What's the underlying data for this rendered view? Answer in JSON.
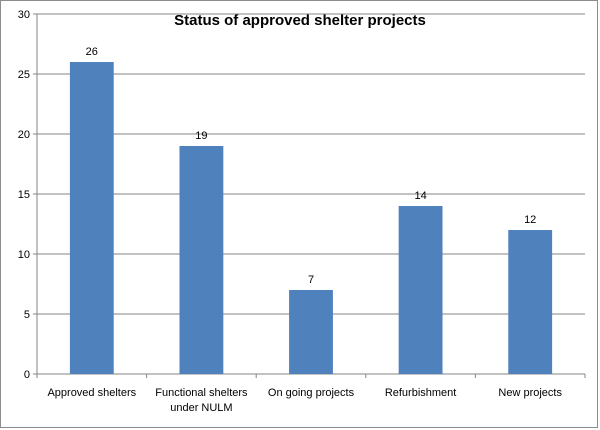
{
  "chart_data": {
    "type": "bar",
    "title": "Status of approved shelter projects",
    "categories": [
      "Approved shelters",
      "Functional shelters under NULM",
      "On going projects",
      "Refurbishment",
      "New projects"
    ],
    "category_lines": [
      [
        "Approved shelters"
      ],
      [
        "Functional shelters",
        "under NULM"
      ],
      [
        "On going projects"
      ],
      [
        "Refurbishment"
      ],
      [
        "New projects"
      ]
    ],
    "values": [
      26,
      19,
      7,
      14,
      12
    ],
    "data_labels": [
      "26",
      "19",
      "7",
      "14",
      "12"
    ],
    "ylim": [
      0,
      30
    ],
    "yticks": [
      0,
      5,
      10,
      15,
      20,
      25,
      30
    ],
    "grid": true,
    "legend": "none",
    "bar_color": "#4f81bd",
    "grid_color": "#868686"
  }
}
